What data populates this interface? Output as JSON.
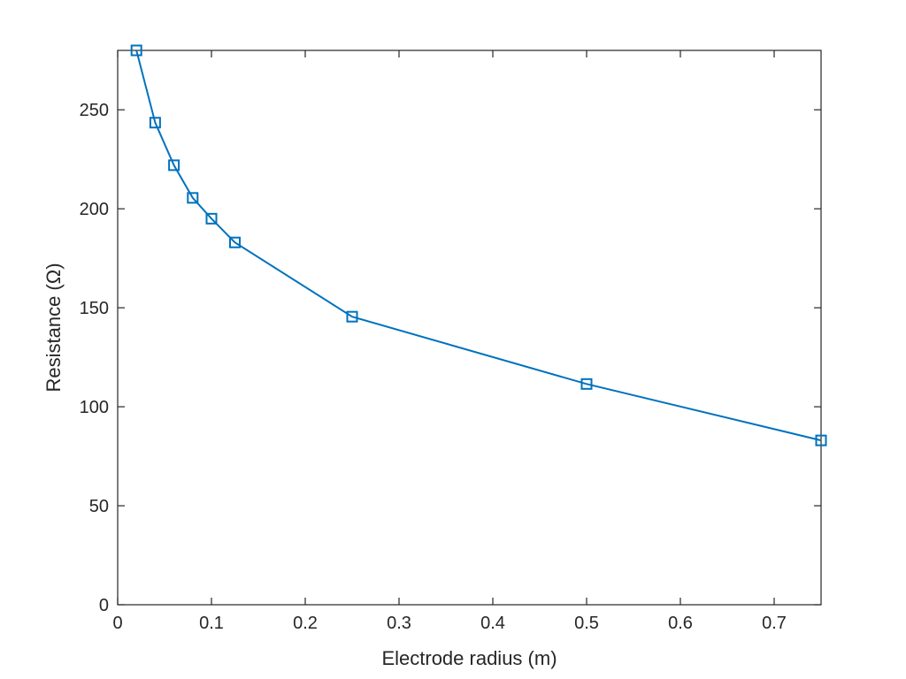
{
  "chart_data": {
    "type": "line",
    "xlabel": "Electrode radius (m)",
    "ylabel": "Resistance (Ω)",
    "xlim": [
      0,
      0.75
    ],
    "ylim": [
      0,
      280
    ],
    "x_ticks": [
      0,
      0.1,
      0.2,
      0.3,
      0.4,
      0.5,
      0.6,
      0.7
    ],
    "x_tick_labels": [
      "0",
      "0.1",
      "0.2",
      "0.3",
      "0.4",
      "0.5",
      "0.6",
      "0.7"
    ],
    "y_ticks": [
      0,
      50,
      100,
      150,
      200,
      250
    ],
    "y_tick_labels": [
      "0",
      "50",
      "100",
      "150",
      "200",
      "250"
    ],
    "grid": false,
    "marker": "square",
    "series": [
      {
        "color": "#0072bd",
        "x": [
          0.02,
          0.04,
          0.06,
          0.08,
          0.1,
          0.125,
          0.25,
          0.5,
          0.75
        ],
        "y": [
          280,
          243.5,
          222,
          205.5,
          195,
          183,
          145.5,
          111.5,
          83
        ]
      }
    ]
  }
}
